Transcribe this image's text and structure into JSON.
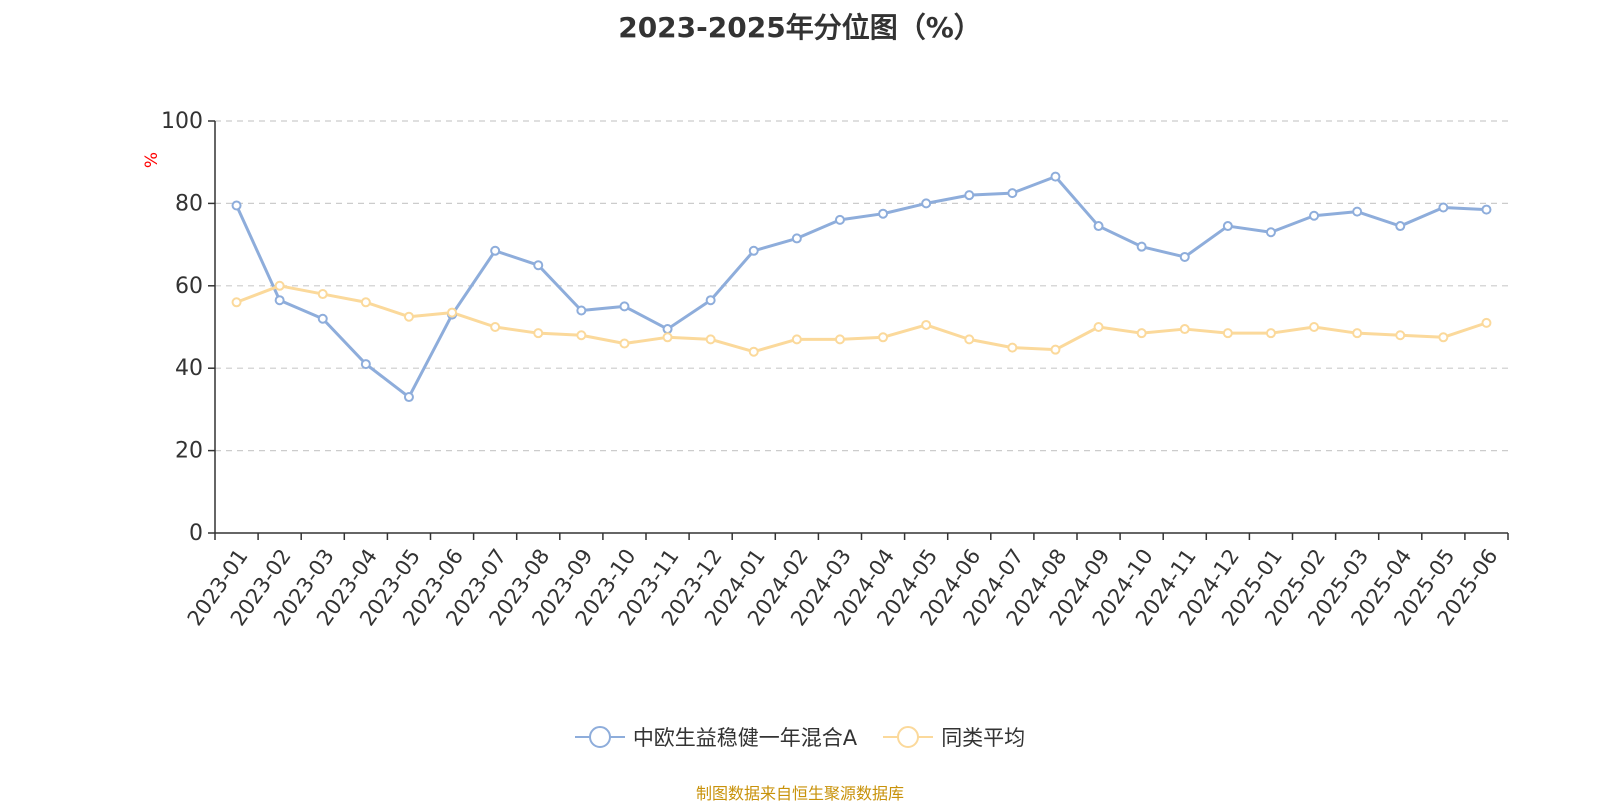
{
  "chart_data": {
    "type": "line",
    "title": "2023-2025年分位图（%）",
    "ylabel": "%",
    "ylim": [
      0,
      100
    ],
    "yticks": [
      0,
      20,
      40,
      60,
      80,
      100
    ],
    "grid": true,
    "legend_position": "bottom",
    "categories": [
      "2023-01",
      "2023-02",
      "2023-03",
      "2023-04",
      "2023-05",
      "2023-06",
      "2023-07",
      "2023-08",
      "2023-09",
      "2023-10",
      "2023-11",
      "2023-12",
      "2024-01",
      "2024-02",
      "2024-03",
      "2024-04",
      "2024-05",
      "2024-06",
      "2024-07",
      "2024-08",
      "2024-09",
      "2024-10",
      "2024-11",
      "2024-12",
      "2025-01",
      "2025-02",
      "2025-03",
      "2025-04",
      "2025-05",
      "2025-06"
    ],
    "series": [
      {
        "name": "中欧生益稳健一年混合A",
        "color": "#8eaddb",
        "values": [
          79.5,
          56.5,
          52.0,
          41.0,
          33.0,
          53.0,
          68.5,
          65.0,
          54.0,
          55.0,
          49.5,
          56.5,
          68.5,
          71.5,
          76.0,
          77.5,
          80.0,
          82.0,
          82.5,
          86.5,
          74.5,
          69.5,
          67.0,
          74.5,
          73.0,
          77.0,
          78.0,
          74.5,
          79.0,
          78.5
        ]
      },
      {
        "name": "同类平均",
        "color": "#fbd99b",
        "values": [
          56.0,
          60.0,
          58.0,
          56.0,
          52.5,
          53.5,
          50.0,
          48.5,
          48.0,
          46.0,
          47.5,
          47.0,
          44.0,
          47.0,
          47.0,
          47.5,
          50.5,
          47.0,
          45.0,
          44.5,
          50.0,
          48.5,
          49.5,
          48.5,
          48.5,
          50.0,
          48.5,
          48.0,
          47.5,
          51.0
        ]
      }
    ]
  },
  "source_text": "制图数据来自恒生聚源数据库"
}
